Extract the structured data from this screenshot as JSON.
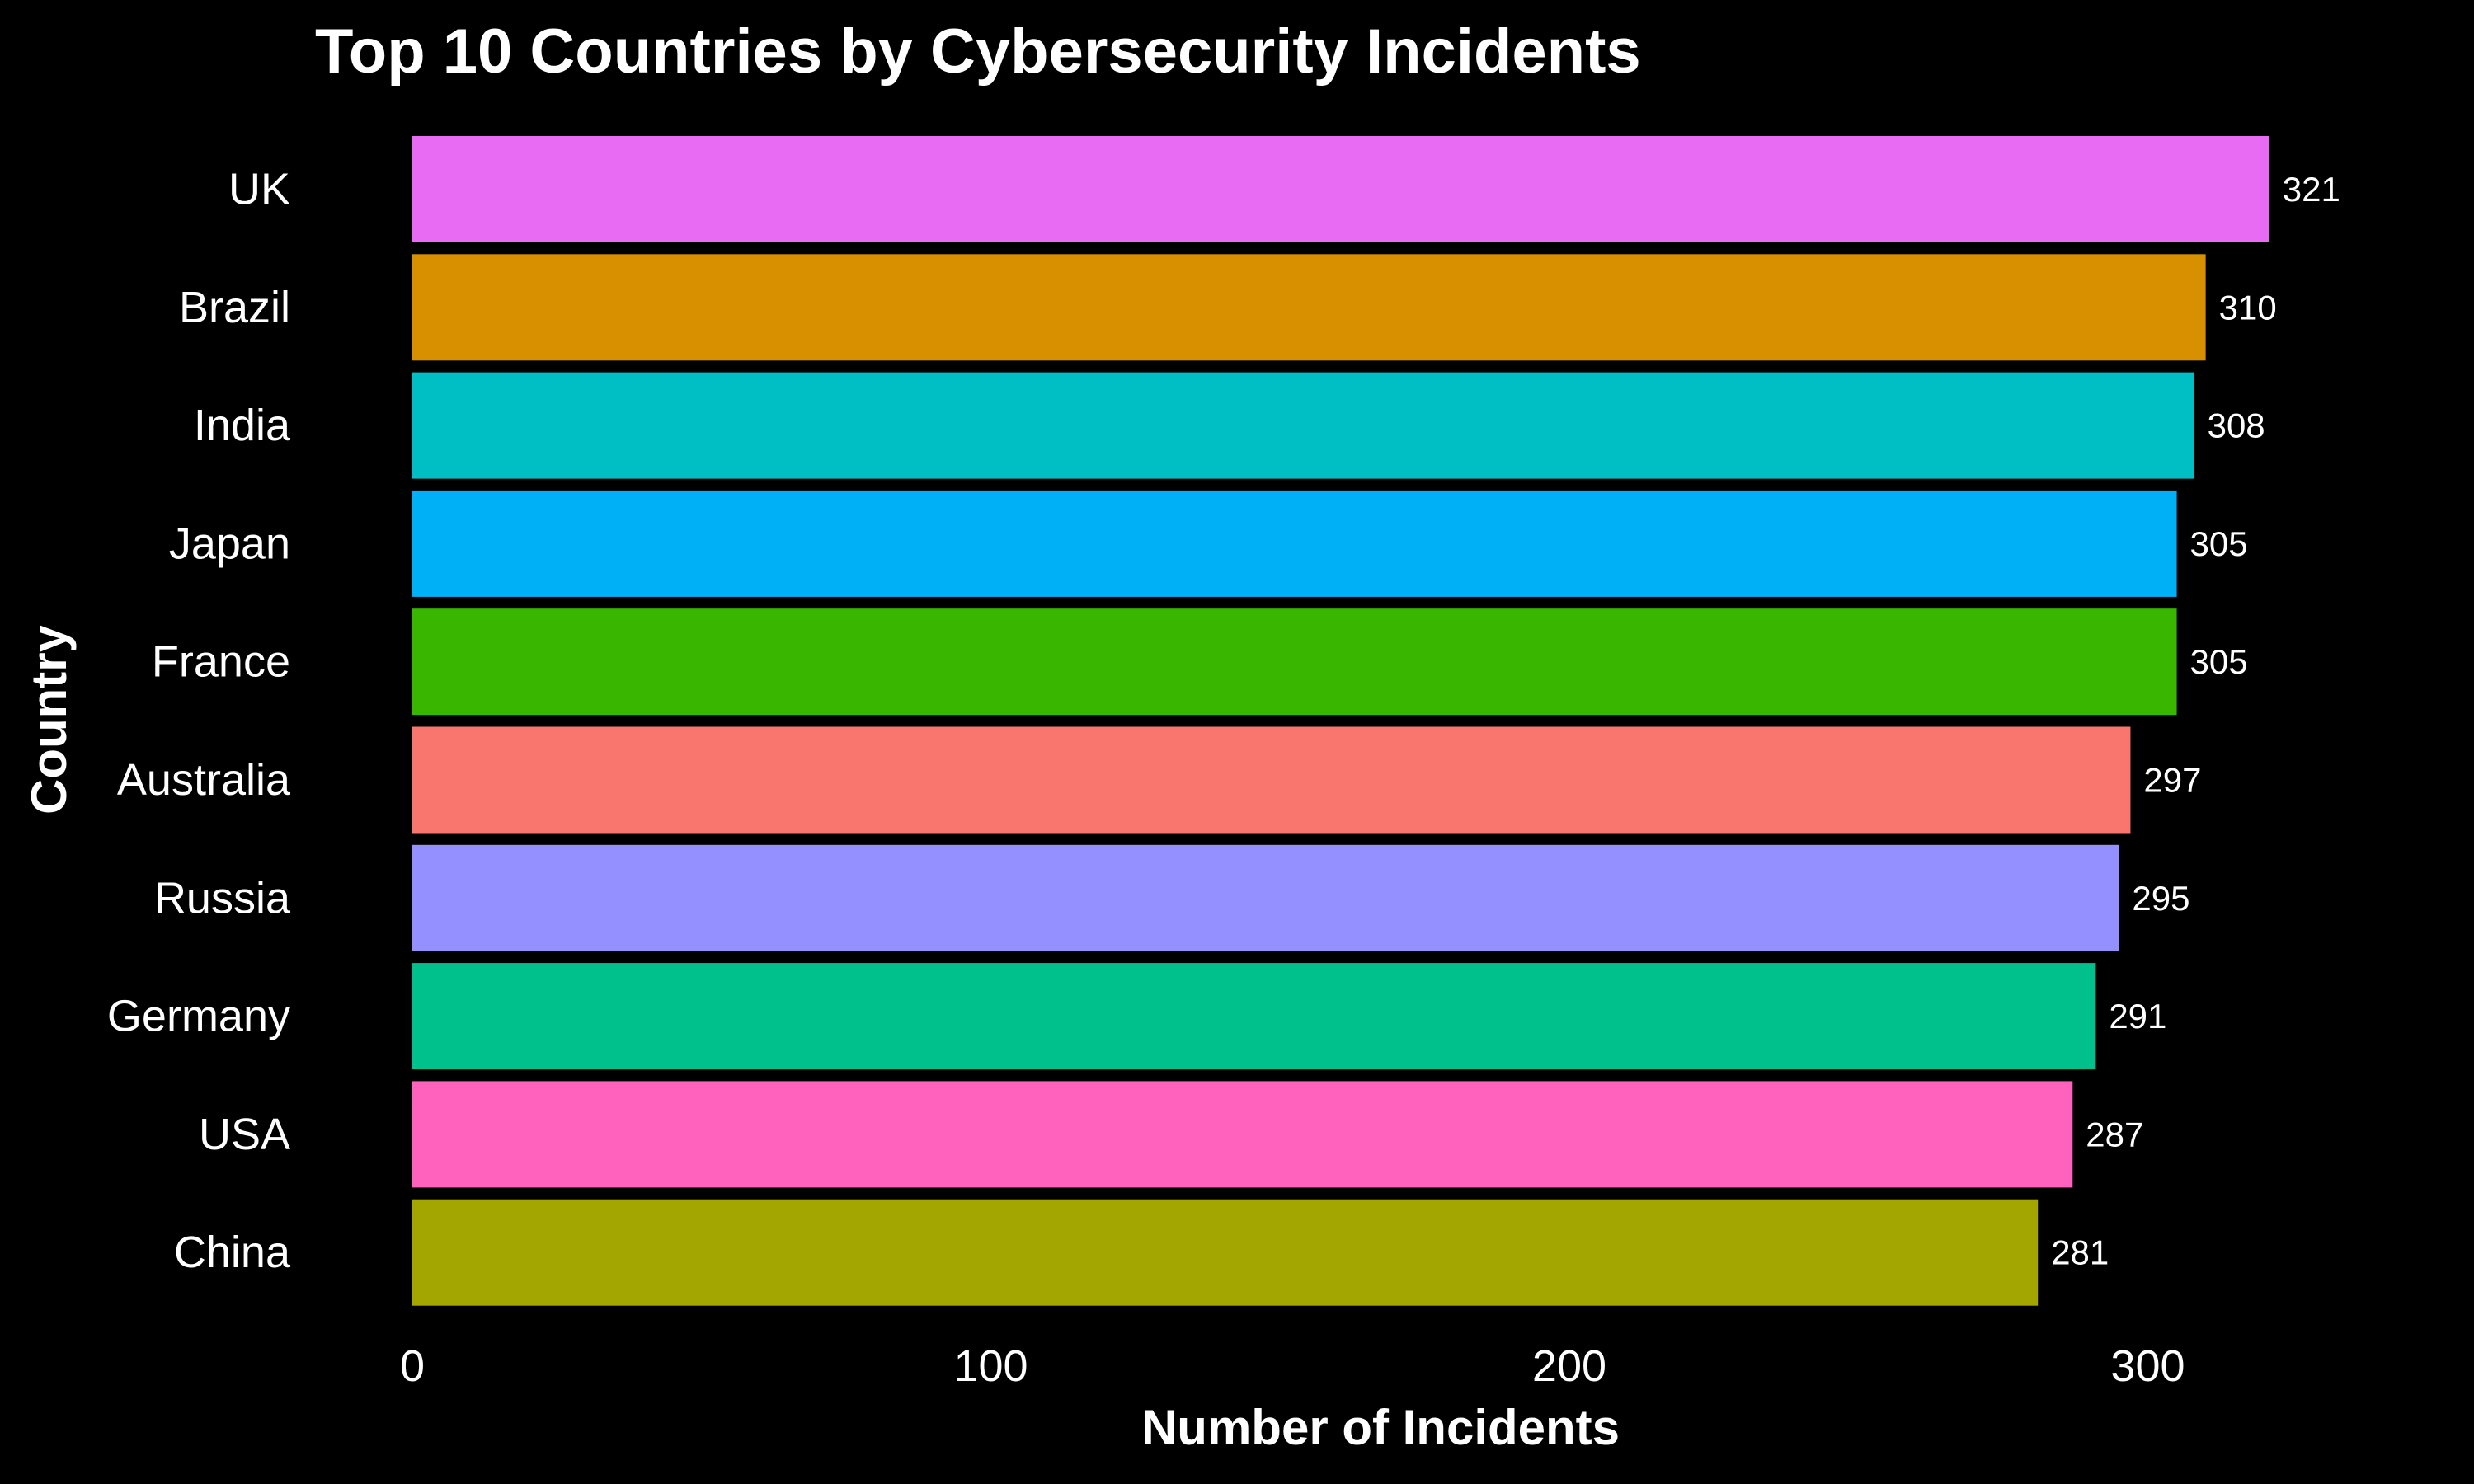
{
  "chart_data": {
    "type": "bar",
    "orientation": "horizontal",
    "title": "Top 10 Countries by Cybersecurity Incidents",
    "xlabel": "Number of Incidents",
    "ylabel": "Country",
    "xlim": [
      0,
      335
    ],
    "xticks": [
      0,
      100,
      200,
      300
    ],
    "grid": false,
    "legend": "none",
    "categories": [
      "UK",
      "Brazil",
      "India",
      "Japan",
      "France",
      "Australia",
      "Russia",
      "Germany",
      "USA",
      "China"
    ],
    "values": [
      321,
      310,
      308,
      305,
      305,
      297,
      295,
      291,
      287,
      281
    ],
    "colors": [
      "#E76BF3",
      "#D89000",
      "#00BFC4",
      "#00B0F6",
      "#39B600",
      "#F8766D",
      "#9590FF",
      "#00C08B",
      "#FF62BC",
      "#A3A500"
    ],
    "background": "#000000",
    "text_color": "#ffffff"
  }
}
